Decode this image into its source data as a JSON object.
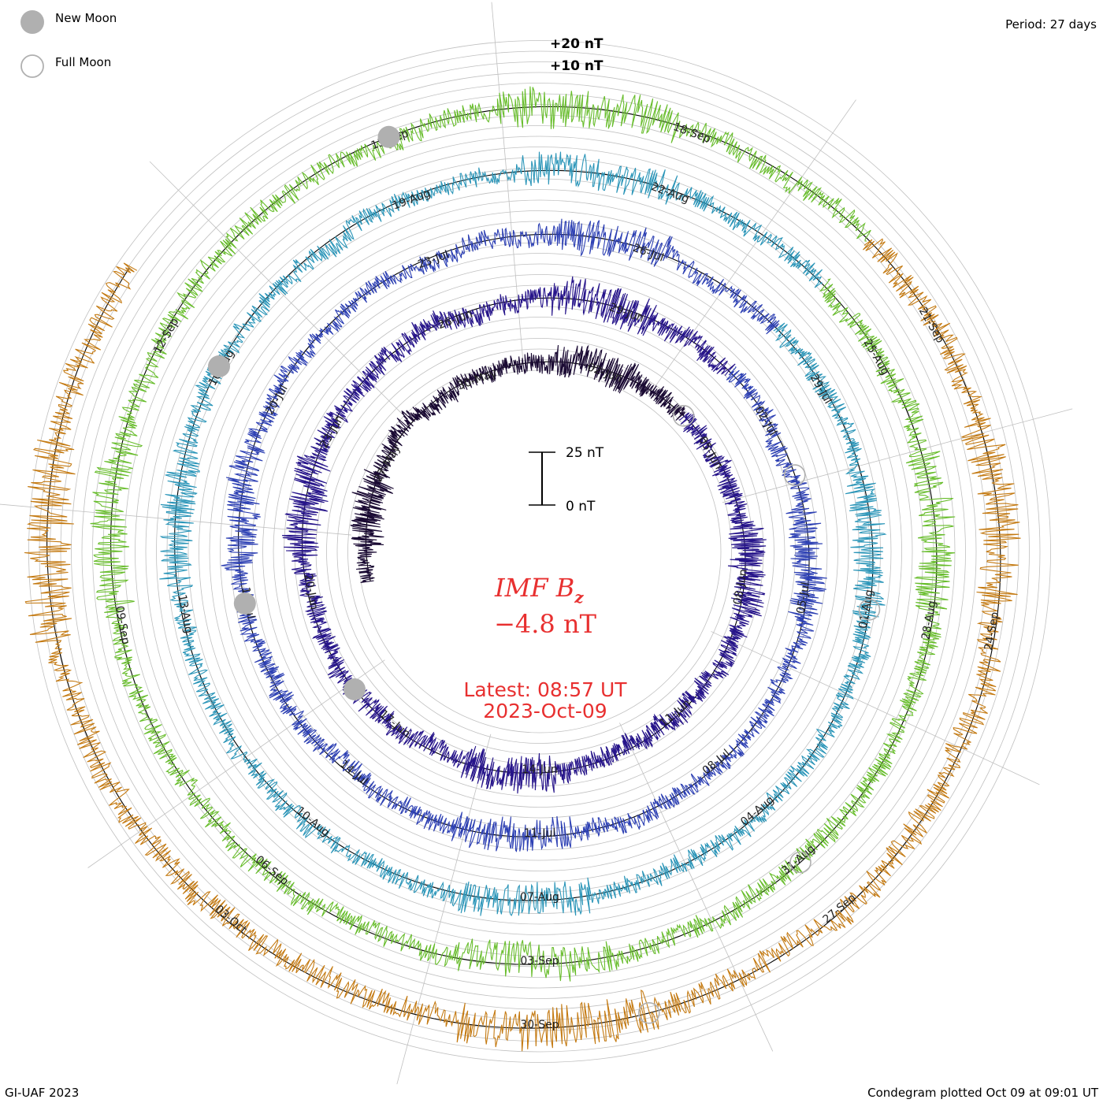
{
  "legend": {
    "new_moon": "New Moon",
    "full_moon": "Full Moon"
  },
  "header": {
    "period": "Period: 27 days"
  },
  "footer": {
    "credit": "GI-UAF 2023",
    "plotted": "Condegram plotted Oct 09 at 09:01 UT"
  },
  "colors": {
    "grid": "#c0c0c0",
    "baseline": "#000000",
    "title": "#e83030",
    "new_moon": "#b0b0b0",
    "full_moon": "#b0b0b0"
  },
  "chart_data": {
    "type": "line",
    "subtype": "spiral-condegram",
    "title": "IMF B",
    "title_subscript": "z",
    "current_value": "−4.8 nT",
    "latest_time": "Latest: 08:57 UT",
    "latest_date": "2023-Oct-09",
    "scale_bar": {
      "top_label": "25 nT",
      "bottom_label": "0 nT",
      "nT": 25
    },
    "axis_labels": {
      "plus20": "+20 nT",
      "plus10": "+10 nT"
    },
    "period_days": 27,
    "rotations": [
      {
        "start": "2023-05-24",
        "color": "#1a0a33",
        "amplitude_nT": 9,
        "labels": [
          "27-May",
          "30-May",
          "02-Jun"
        ]
      },
      {
        "start": "2023-06-04",
        "color": "#26148a",
        "amplitude_nT": 10,
        "labels": [
          "05-Jun",
          "08-Jun",
          "11-Jun",
          "14-Jun",
          "17-Jun",
          "20-Jun",
          "23-Jun",
          "26-Jun",
          "29-Jun"
        ]
      },
      {
        "start": "2023-07-01",
        "color": "#2c3fb3",
        "amplitude_nT": 9,
        "labels": [
          "02-Jul",
          "05-Jul",
          "08-Jul",
          "11-Jul",
          "14-Jul",
          "17-Jul",
          "20-Jul",
          "23-Jul",
          "26-Jul"
        ]
      },
      {
        "start": "2023-07-28",
        "color": "#2a95b8",
        "amplitude_nT": 9,
        "labels": [
          "29-Jul",
          "01-Aug",
          "04-Aug",
          "07-Aug",
          "10-Aug",
          "13-Aug",
          "16-Aug",
          "19-Aug",
          "22-Aug"
        ]
      },
      {
        "start": "2023-08-24",
        "color": "#68bd2c",
        "amplitude_nT": 10,
        "labels": [
          "25-Aug",
          "28-Aug",
          "31-Aug",
          "03-Sep",
          "06-Sep",
          "09-Sep",
          "12-Sep",
          "15-Sep",
          "18-Sep"
        ]
      },
      {
        "start": "2023-09-20",
        "color": "#c47a12",
        "amplitude_nT": 12,
        "labels": [
          "21-Sep",
          "24-Sep",
          "27-Sep",
          "30-Sep",
          "03-Oct"
        ]
      }
    ],
    "new_moons": [
      "2023-06-18",
      "2023-07-17",
      "2023-08-16",
      "2023-09-15"
    ],
    "full_moons": [
      "2023-06-04",
      "2023-07-03",
      "2023-08-01",
      "2023-08-31",
      "2023-09-29"
    ]
  }
}
